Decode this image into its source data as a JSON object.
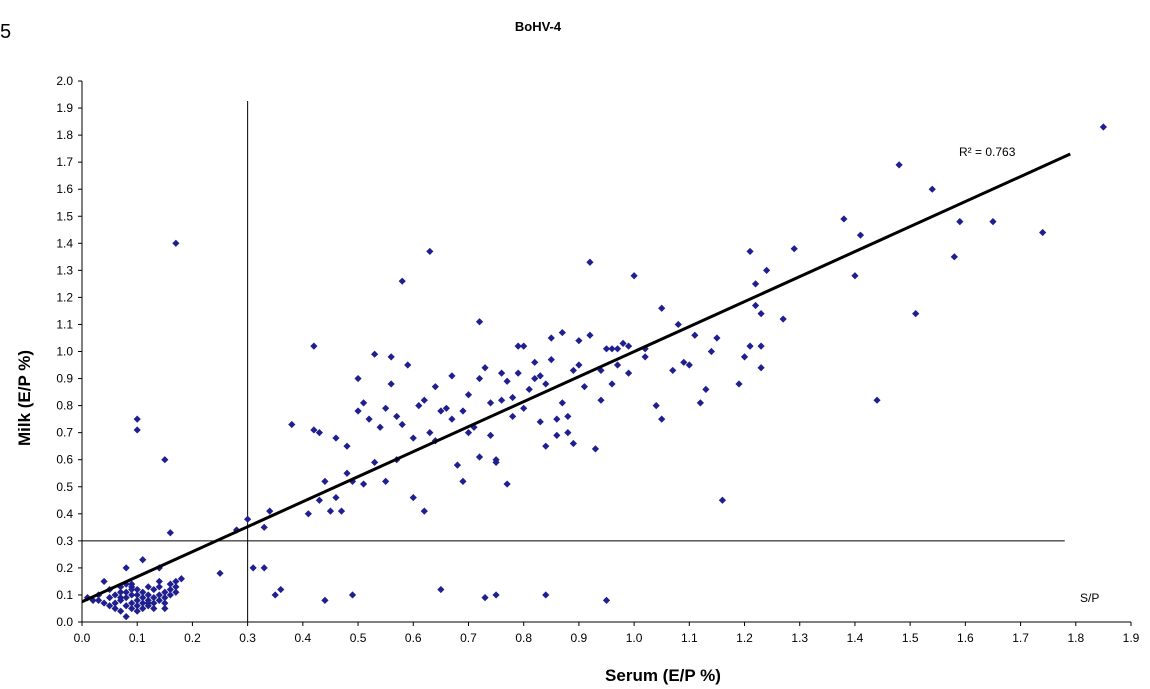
{
  "corner_label": "5",
  "chart_data": {
    "type": "scatter",
    "title": "BoHV-4",
    "xlabel": "Serum (E/P %)",
    "ylabel": "Milk (E/P %)",
    "xlim": [
      0,
      1.9
    ],
    "ylim": [
      0,
      2.0
    ],
    "x_ticks": [
      "0.0",
      "0.1",
      "0.2",
      "0.3",
      "0.4",
      "0.5",
      "0.6",
      "0.7",
      "0.8",
      "0.9",
      "1.0",
      "1.1",
      "1.2",
      "1.3",
      "1.4",
      "1.5",
      "1.6",
      "1.7",
      "1.8",
      "1.9"
    ],
    "y_ticks": [
      "0.0",
      "0.1",
      "0.2",
      "0.3",
      "0.4",
      "0.5",
      "0.6",
      "0.7",
      "0.8",
      "0.9",
      "1.0",
      "1.1",
      "1.2",
      "1.3",
      "1.4",
      "1.5",
      "1.6",
      "1.7",
      "1.8",
      "1.9",
      "2.0"
    ],
    "grid": false,
    "marker_color": "#1f1f8f",
    "cutoff_lines": {
      "x": 0.3,
      "y": 0.3
    },
    "trendline": {
      "x": [
        0.0,
        1.79
      ],
      "y": [
        0.075,
        1.73
      ]
    },
    "annotations": {
      "r_squared": "R² = 0.763",
      "cutoff_label": "S/P"
    },
    "points": [
      [
        0.01,
        0.09
      ],
      [
        0.02,
        0.08
      ],
      [
        0.03,
        0.08
      ],
      [
        0.04,
        0.07
      ],
      [
        0.04,
        0.15
      ],
      [
        0.05,
        0.12
      ],
      [
        0.05,
        0.09
      ],
      [
        0.05,
        0.06
      ],
      [
        0.06,
        0.05
      ],
      [
        0.06,
        0.1
      ],
      [
        0.07,
        0.04
      ],
      [
        0.07,
        0.13
      ],
      [
        0.07,
        0.08
      ],
      [
        0.08,
        0.02
      ],
      [
        0.08,
        0.06
      ],
      [
        0.08,
        0.09
      ],
      [
        0.08,
        0.11
      ],
      [
        0.09,
        0.07
      ],
      [
        0.09,
        0.1
      ],
      [
        0.09,
        0.05
      ],
      [
        0.09,
        0.13
      ],
      [
        0.1,
        0.06
      ],
      [
        0.1,
        0.08
      ],
      [
        0.1,
        0.1
      ],
      [
        0.1,
        0.12
      ],
      [
        0.11,
        0.05
      ],
      [
        0.11,
        0.07
      ],
      [
        0.11,
        0.09
      ],
      [
        0.11,
        0.11
      ],
      [
        0.12,
        0.06
      ],
      [
        0.12,
        0.08
      ],
      [
        0.12,
        0.1
      ],
      [
        0.13,
        0.07
      ],
      [
        0.13,
        0.09
      ],
      [
        0.13,
        0.12
      ],
      [
        0.14,
        0.08
      ],
      [
        0.14,
        0.1
      ],
      [
        0.14,
        0.13
      ],
      [
        0.15,
        0.07
      ],
      [
        0.15,
        0.09
      ],
      [
        0.15,
        0.11
      ],
      [
        0.16,
        0.12
      ],
      [
        0.16,
        0.14
      ],
      [
        0.17,
        0.13
      ],
      [
        0.17,
        0.15
      ],
      [
        0.18,
        0.16
      ],
      [
        0.03,
        0.1
      ],
      [
        0.06,
        0.07
      ],
      [
        0.07,
        0.11
      ],
      [
        0.09,
        0.12
      ],
      [
        0.1,
        0.04
      ],
      [
        0.12,
        0.13
      ],
      [
        0.13,
        0.05
      ],
      [
        0.14,
        0.15
      ],
      [
        0.15,
        0.05
      ],
      [
        0.16,
        0.1
      ],
      [
        0.17,
        0.11
      ],
      [
        0.11,
        0.23
      ],
      [
        0.09,
        0.14
      ],
      [
        0.08,
        0.14
      ],
      [
        0.07,
        0.09
      ],
      [
        0.12,
        0.07
      ],
      [
        0.1,
        0.75
      ],
      [
        0.1,
        0.71
      ],
      [
        0.17,
        1.4
      ],
      [
        0.15,
        0.6
      ],
      [
        0.16,
        0.33
      ],
      [
        0.14,
        0.2
      ],
      [
        0.08,
        0.2
      ],
      [
        0.25,
        0.18
      ],
      [
        0.28,
        0.34
      ],
      [
        0.3,
        0.38
      ],
      [
        0.31,
        0.2
      ],
      [
        0.33,
        0.2
      ],
      [
        0.33,
        0.35
      ],
      [
        0.34,
        0.41
      ],
      [
        0.35,
        0.1
      ],
      [
        0.36,
        0.12
      ],
      [
        0.38,
        0.73
      ],
      [
        0.41,
        0.4
      ],
      [
        0.42,
        0.71
      ],
      [
        0.42,
        1.02
      ],
      [
        0.43,
        0.7
      ],
      [
        0.43,
        0.45
      ],
      [
        0.44,
        0.52
      ],
      [
        0.44,
        0.08
      ],
      [
        0.45,
        0.41
      ],
      [
        0.46,
        0.68
      ],
      [
        0.47,
        0.41
      ],
      [
        0.48,
        0.65
      ],
      [
        0.48,
        0.55
      ],
      [
        0.49,
        0.52
      ],
      [
        0.49,
        0.1
      ],
      [
        0.5,
        0.78
      ],
      [
        0.5,
        0.9
      ],
      [
        0.51,
        0.81
      ],
      [
        0.51,
        0.51
      ],
      [
        0.52,
        0.75
      ],
      [
        0.53,
        0.59
      ],
      [
        0.53,
        0.99
      ],
      [
        0.54,
        0.72
      ],
      [
        0.55,
        0.52
      ],
      [
        0.55,
        0.79
      ],
      [
        0.56,
        0.88
      ],
      [
        0.56,
        0.98
      ],
      [
        0.57,
        0.76
      ],
      [
        0.57,
        0.6
      ],
      [
        0.58,
        0.73
      ],
      [
        0.58,
        1.26
      ],
      [
        0.59,
        0.95
      ],
      [
        0.6,
        0.46
      ],
      [
        0.6,
        0.68
      ],
      [
        0.61,
        0.8
      ],
      [
        0.62,
        0.82
      ],
      [
        0.62,
        0.41
      ],
      [
        0.63,
        0.7
      ],
      [
        0.63,
        1.37
      ],
      [
        0.64,
        0.87
      ],
      [
        0.64,
        0.67
      ],
      [
        0.65,
        0.78
      ],
      [
        0.65,
        0.12
      ],
      [
        0.66,
        0.79
      ],
      [
        0.67,
        0.91
      ],
      [
        0.67,
        0.75
      ],
      [
        0.68,
        0.58
      ],
      [
        0.69,
        0.52
      ],
      [
        0.69,
        0.78
      ],
      [
        0.7,
        0.84
      ],
      [
        0.7,
        0.7
      ],
      [
        0.71,
        0.72
      ],
      [
        0.72,
        0.61
      ],
      [
        0.72,
        0.9
      ],
      [
        0.72,
        1.11
      ],
      [
        0.73,
        0.94
      ],
      [
        0.73,
        0.09
      ],
      [
        0.74,
        0.81
      ],
      [
        0.74,
        0.69
      ],
      [
        0.75,
        0.59
      ],
      [
        0.75,
        0.6
      ],
      [
        0.75,
        0.1
      ],
      [
        0.76,
        0.92
      ],
      [
        0.76,
        0.82
      ],
      [
        0.77,
        0.51
      ],
      [
        0.77,
        0.89
      ],
      [
        0.78,
        0.83
      ],
      [
        0.78,
        0.76
      ],
      [
        0.79,
        1.02
      ],
      [
        0.79,
        0.92
      ],
      [
        0.8,
        1.02
      ],
      [
        0.8,
        0.79
      ],
      [
        0.81,
        0.86
      ],
      [
        0.82,
        0.96
      ],
      [
        0.82,
        0.9
      ],
      [
        0.83,
        0.91
      ],
      [
        0.83,
        0.74
      ],
      [
        0.84,
        0.88
      ],
      [
        0.84,
        0.65
      ],
      [
        0.84,
        0.1
      ],
      [
        0.85,
        1.05
      ],
      [
        0.85,
        0.97
      ],
      [
        0.86,
        0.69
      ],
      [
        0.86,
        0.75
      ],
      [
        0.87,
        1.07
      ],
      [
        0.87,
        0.81
      ],
      [
        0.88,
        0.7
      ],
      [
        0.88,
        0.76
      ],
      [
        0.89,
        0.93
      ],
      [
        0.89,
        0.66
      ],
      [
        0.9,
        1.04
      ],
      [
        0.9,
        0.95
      ],
      [
        0.91,
        0.87
      ],
      [
        0.92,
        1.06
      ],
      [
        0.92,
        1.33
      ],
      [
        0.93,
        0.64
      ],
      [
        0.94,
        0.82
      ],
      [
        0.94,
        0.93
      ],
      [
        0.95,
        1.01
      ],
      [
        0.95,
        0.08
      ],
      [
        0.96,
        1.01
      ],
      [
        0.97,
        1.01
      ],
      [
        0.97,
        0.95
      ],
      [
        0.98,
        1.03
      ],
      [
        0.99,
        1.02
      ],
      [
        0.99,
        0.92
      ],
      [
        1.0,
        1.28
      ],
      [
        1.02,
        1.01
      ],
      [
        1.04,
        0.8
      ],
      [
        1.05,
        0.75
      ],
      [
        1.05,
        1.16
      ],
      [
        1.07,
        0.93
      ],
      [
        1.08,
        1.1
      ],
      [
        1.09,
        0.96
      ],
      [
        1.1,
        0.95
      ],
      [
        1.11,
        1.06
      ],
      [
        1.12,
        0.81
      ],
      [
        1.13,
        0.86
      ],
      [
        1.14,
        1.0
      ],
      [
        1.15,
        1.05
      ],
      [
        1.16,
        0.45
      ],
      [
        1.19,
        0.88
      ],
      [
        1.2,
        0.98
      ],
      [
        1.21,
        1.37
      ],
      [
        1.21,
        1.02
      ],
      [
        1.22,
        1.25
      ],
      [
        1.22,
        1.17
      ],
      [
        1.23,
        1.14
      ],
      [
        1.23,
        0.94
      ],
      [
        1.24,
        1.3
      ],
      [
        1.27,
        1.12
      ],
      [
        1.29,
        1.38
      ],
      [
        1.38,
        1.49
      ],
      [
        1.4,
        1.28
      ],
      [
        1.41,
        1.43
      ],
      [
        1.44,
        0.82
      ],
      [
        1.48,
        1.69
      ],
      [
        1.51,
        1.14
      ],
      [
        1.54,
        1.6
      ],
      [
        1.58,
        1.35
      ],
      [
        1.59,
        1.48
      ],
      [
        1.65,
        1.48
      ],
      [
        1.74,
        1.44
      ],
      [
        1.85,
        1.83
      ],
      [
        1.23,
        1.02
      ],
      [
        1.02,
        0.98
      ],
      [
        0.46,
        0.46
      ],
      [
        0.96,
        0.88
      ]
    ]
  }
}
